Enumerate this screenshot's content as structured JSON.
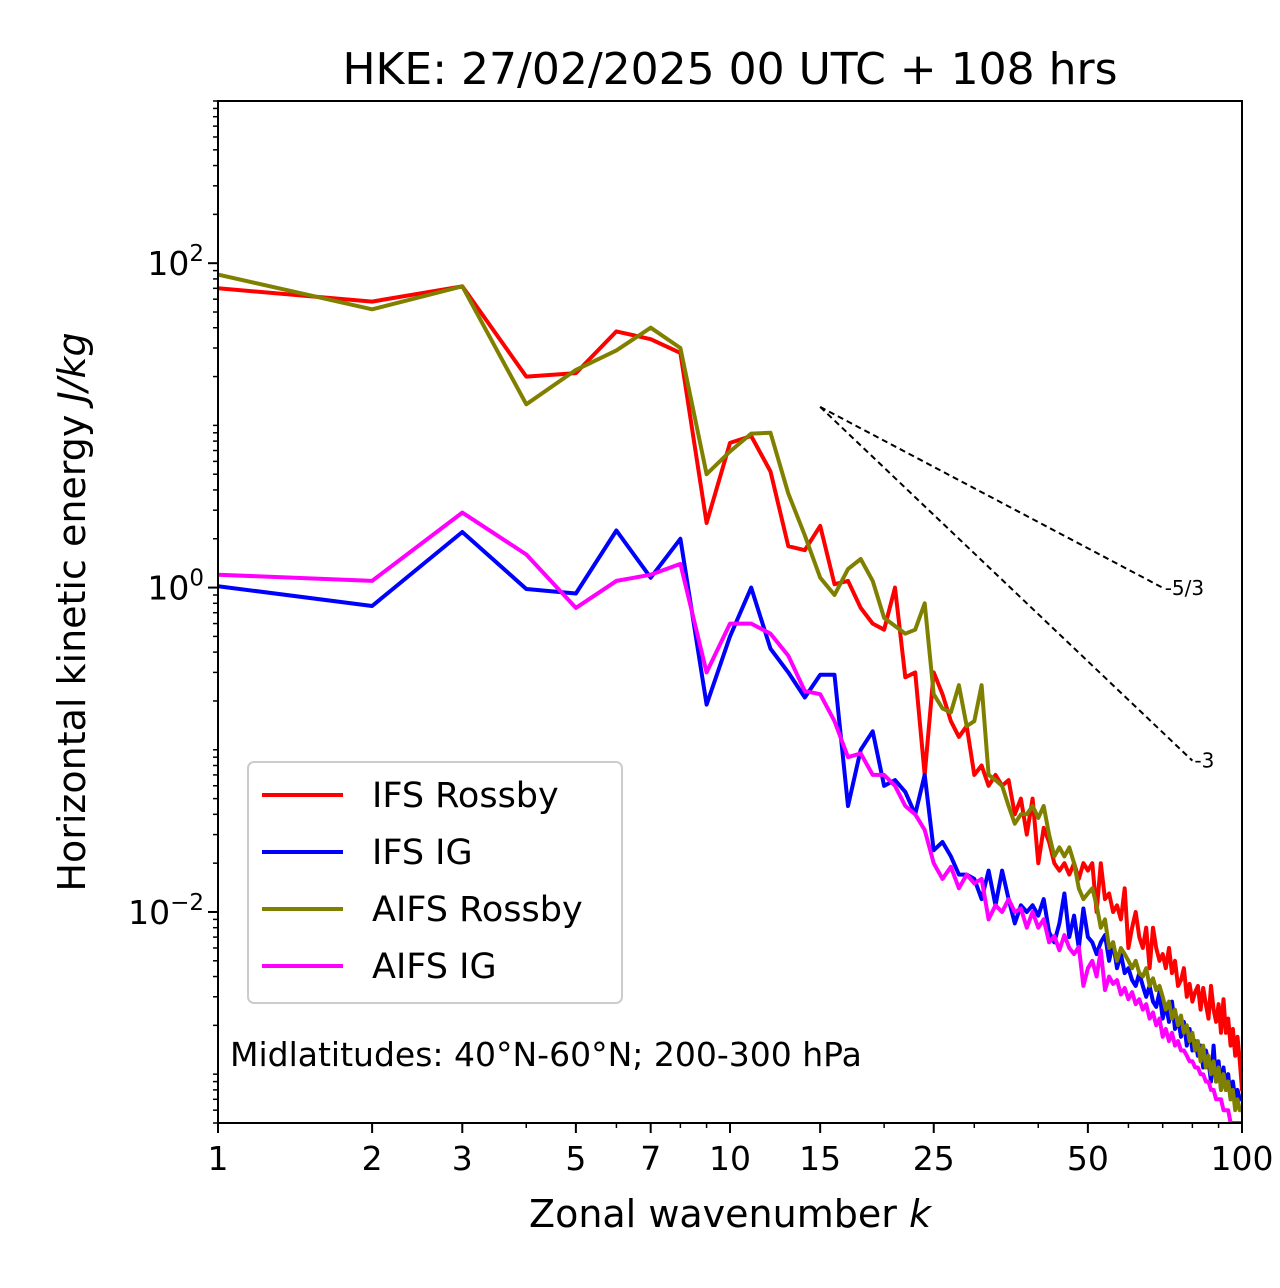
{
  "chart_data": {
    "type": "line",
    "title": "HKE: 27/02/2025 00 UTC + 108 hrs",
    "xlabel": "Zonal wavenumber ",
    "xlabel_italic": "k",
    "ylabel": "Horizontal kinetic energy ",
    "ylabel_italic": "J/kg",
    "x_scale": "log",
    "y_scale": "log",
    "xlim": [
      1,
      100
    ],
    "ylim": [
      0.0005,
      1000
    ],
    "x_ticks": [
      1,
      2,
      3,
      5,
      7,
      10,
      15,
      25,
      50,
      100
    ],
    "x_tick_labels": [
      "1",
      "2",
      "3",
      "5",
      "7",
      "10",
      "15",
      "25",
      "50",
      "100"
    ],
    "y_ticks": [
      {
        "value": 100,
        "base": "10",
        "exp": "2"
      },
      {
        "value": 1,
        "base": "10",
        "exp": "0"
      },
      {
        "value": 0.01,
        "base": "10",
        "exp": "−2"
      }
    ],
    "grid": false,
    "legend_position": "lower-left",
    "annotation": "Midlatitudes: 40°N-60°N; 200-300 hPa",
    "reference_slopes": [
      {
        "label": "-5/3",
        "slope": -1.6667,
        "x_start": 15,
        "x_end": 70,
        "y_start": 13
      },
      {
        "label": "-3",
        "slope": -3,
        "x_start": 15,
        "x_end": 80,
        "y_start": 13
      }
    ],
    "series": [
      {
        "name": "IFS Rossby",
        "color": "#ff0000",
        "x": [
          1,
          2,
          3,
          4,
          5,
          6,
          7,
          8,
          9,
          10,
          11,
          12,
          13,
          14,
          15,
          16,
          17,
          18,
          19,
          20,
          21,
          22,
          23,
          24,
          25,
          26,
          27,
          28,
          29,
          30,
          31,
          32,
          33,
          34,
          35,
          36,
          37,
          38,
          39,
          40,
          41,
          42,
          43,
          44,
          45,
          46,
          47,
          48,
          49,
          50,
          51,
          52,
          53,
          54,
          55,
          56,
          57,
          58,
          59,
          60,
          61,
          62,
          63,
          64,
          65,
          66,
          67,
          68,
          69,
          70,
          71,
          72,
          73,
          74,
          75,
          76,
          77,
          78,
          79,
          80,
          81,
          82,
          83,
          84,
          85,
          86,
          87,
          88,
          89,
          90,
          91,
          92,
          93,
          94,
          95,
          96,
          97,
          98,
          99,
          100
        ],
        "y": [
          70,
          58,
          72,
          20,
          21,
          38,
          34,
          28,
          2.5,
          7.8,
          8.6,
          5.2,
          1.8,
          1.7,
          2.4,
          1.05,
          1.1,
          0.75,
          0.6,
          0.55,
          1.0,
          0.28,
          0.3,
          0.07,
          0.3,
          0.22,
          0.15,
          0.12,
          0.14,
          0.07,
          0.08,
          0.06,
          0.07,
          0.06,
          0.065,
          0.04,
          0.05,
          0.03,
          0.05,
          0.02,
          0.033,
          0.027,
          0.02,
          0.018,
          0.02,
          0.017,
          0.02,
          0.016,
          0.02,
          0.018,
          0.02,
          0.01,
          0.02,
          0.012,
          0.013,
          0.01,
          0.011,
          0.009,
          0.014,
          0.006,
          0.008,
          0.01,
          0.007,
          0.006,
          0.008,
          0.0045,
          0.008,
          0.006,
          0.005,
          0.0055,
          0.0045,
          0.006,
          0.0042,
          0.005,
          0.0035,
          0.0038,
          0.0045,
          0.003,
          0.0036,
          0.0028,
          0.0032,
          0.0035,
          0.0025,
          0.0034,
          0.0027,
          0.0022,
          0.0035,
          0.0025,
          0.0021,
          0.0027,
          0.0018,
          0.0029,
          0.0018,
          0.0022,
          0.0015,
          0.0019,
          0.0013,
          0.0017,
          0.0012,
          0.0008
        ]
      },
      {
        "name": "IFS IG",
        "color": "#0000ff",
        "x": [
          1,
          2,
          3,
          4,
          5,
          6,
          7,
          8,
          9,
          10,
          11,
          12,
          13,
          14,
          15,
          16,
          17,
          18,
          19,
          20,
          21,
          22,
          23,
          24,
          25,
          26,
          27,
          28,
          29,
          30,
          31,
          32,
          33,
          34,
          35,
          36,
          37,
          38,
          39,
          40,
          41,
          42,
          43,
          44,
          45,
          46,
          47,
          48,
          49,
          50,
          51,
          52,
          53,
          54,
          55,
          56,
          57,
          58,
          59,
          60,
          61,
          62,
          63,
          64,
          65,
          66,
          67,
          68,
          69,
          70,
          71,
          72,
          73,
          74,
          75,
          76,
          77,
          78,
          79,
          80,
          81,
          82,
          83,
          84,
          85,
          86,
          87,
          88,
          89,
          90,
          91,
          92,
          93,
          94,
          95,
          96,
          97,
          98,
          99,
          100
        ],
        "y": [
          1.02,
          0.77,
          2.2,
          0.98,
          0.92,
          2.25,
          1.15,
          2.0,
          0.19,
          0.5,
          1.0,
          0.42,
          0.3,
          0.21,
          0.29,
          0.29,
          0.045,
          0.1,
          0.13,
          0.06,
          0.065,
          0.055,
          0.04,
          0.07,
          0.024,
          0.027,
          0.022,
          0.017,
          0.017,
          0.016,
          0.012,
          0.018,
          0.011,
          0.018,
          0.012,
          0.0085,
          0.011,
          0.01,
          0.011,
          0.0095,
          0.012,
          0.0075,
          0.0065,
          0.0085,
          0.013,
          0.007,
          0.0095,
          0.006,
          0.0105,
          0.007,
          0.0065,
          0.0055,
          0.0065,
          0.0072,
          0.005,
          0.0065,
          0.0045,
          0.0055,
          0.0042,
          0.0045,
          0.0038,
          0.0035,
          0.0042,
          0.0035,
          0.003,
          0.0035,
          0.0028,
          0.0026,
          0.0032,
          0.0022,
          0.0027,
          0.0021,
          0.0028,
          0.0019,
          0.0022,
          0.0017,
          0.0021,
          0.0015,
          0.0019,
          0.0014,
          0.0016,
          0.0013,
          0.0015,
          0.0011,
          0.0014,
          0.0012,
          0.0009,
          0.0015,
          0.0009,
          0.0012,
          0.0008,
          0.0011,
          0.0008,
          0.001,
          0.0007,
          0.0009,
          0.0007,
          0.0008,
          0.0007,
          0.0007
        ]
      },
      {
        "name": "AIFS Rossby",
        "color": "#808000",
        "x": [
          1,
          2,
          3,
          4,
          5,
          6,
          7,
          8,
          9,
          10,
          11,
          12,
          13,
          14,
          15,
          16,
          17,
          18,
          19,
          20,
          21,
          22,
          23,
          24,
          25,
          26,
          27,
          28,
          29,
          30,
          31,
          32,
          33,
          34,
          35,
          36,
          37,
          38,
          39,
          40,
          41,
          42,
          43,
          44,
          45,
          46,
          47,
          48,
          49,
          50,
          51,
          52,
          53,
          54,
          55,
          56,
          57,
          58,
          59,
          60,
          61,
          62,
          63,
          64,
          65,
          66,
          67,
          68,
          69,
          70,
          71,
          72,
          73,
          74,
          75,
          76,
          77,
          78,
          79,
          80,
          81,
          82,
          83,
          84,
          85,
          86,
          87,
          88,
          89,
          90,
          91,
          92,
          93,
          94,
          95,
          96,
          97,
          98,
          99,
          100
        ],
        "y": [
          85,
          52,
          72,
          13.5,
          22,
          29,
          40,
          30,
          5.0,
          6.9,
          8.9,
          9.0,
          3.8,
          2.1,
          1.15,
          0.9,
          1.3,
          1.5,
          1.1,
          0.65,
          0.58,
          0.52,
          0.55,
          0.8,
          0.22,
          0.18,
          0.17,
          0.25,
          0.14,
          0.15,
          0.25,
          0.07,
          0.065,
          0.06,
          0.045,
          0.035,
          0.04,
          0.04,
          0.045,
          0.038,
          0.045,
          0.03,
          0.022,
          0.025,
          0.022,
          0.025,
          0.02,
          0.014,
          0.012,
          0.013,
          0.014,
          0.011,
          0.008,
          0.009,
          0.006,
          0.0065,
          0.005,
          0.006,
          0.0055,
          0.005,
          0.0045,
          0.005,
          0.0042,
          0.004,
          0.0045,
          0.0035,
          0.0039,
          0.0033,
          0.0035,
          0.003,
          0.0025,
          0.0028,
          0.0022,
          0.0025,
          0.002,
          0.0023,
          0.0018,
          0.002,
          0.0016,
          0.0018,
          0.0014,
          0.0016,
          0.0012,
          0.0015,
          0.0011,
          0.0013,
          0.001,
          0.0012,
          0.0009,
          0.0011,
          0.0008,
          0.001,
          0.0008,
          0.0009,
          0.0007,
          0.0008,
          0.0006,
          0.0007,
          0.0006,
          0.0006
        ]
      },
      {
        "name": "AIFS IG",
        "color": "#ff00ff",
        "x": [
          1,
          2,
          3,
          4,
          5,
          6,
          7,
          8,
          9,
          10,
          11,
          12,
          13,
          14,
          15,
          16,
          17,
          18,
          19,
          20,
          21,
          22,
          23,
          24,
          25,
          26,
          27,
          28,
          29,
          30,
          31,
          32,
          33,
          34,
          35,
          36,
          37,
          38,
          39,
          40,
          41,
          42,
          43,
          44,
          45,
          46,
          47,
          48,
          49,
          50,
          51,
          52,
          53,
          54,
          55,
          56,
          57,
          58,
          59,
          60,
          61,
          62,
          63,
          64,
          65,
          66,
          67,
          68,
          69,
          70,
          71,
          72,
          73,
          74,
          75,
          76,
          77,
          78,
          79,
          80,
          81,
          82,
          83,
          84,
          85,
          86,
          87,
          88,
          89,
          90,
          91,
          92,
          93,
          94,
          95,
          96,
          97,
          98,
          99,
          100
        ],
        "y": [
          1.2,
          1.1,
          2.9,
          1.6,
          0.75,
          1.1,
          1.2,
          1.4,
          0.3,
          0.6,
          0.6,
          0.52,
          0.38,
          0.23,
          0.22,
          0.15,
          0.09,
          0.095,
          0.07,
          0.07,
          0.06,
          0.045,
          0.04,
          0.032,
          0.02,
          0.016,
          0.019,
          0.014,
          0.017,
          0.015,
          0.016,
          0.009,
          0.011,
          0.01,
          0.012,
          0.01,
          0.0105,
          0.008,
          0.01,
          0.008,
          0.009,
          0.0065,
          0.0071,
          0.0058,
          0.0072,
          0.006,
          0.0055,
          0.0061,
          0.0035,
          0.0045,
          0.005,
          0.004,
          0.0058,
          0.0033,
          0.004,
          0.0036,
          0.0038,
          0.0031,
          0.0034,
          0.0029,
          0.0032,
          0.0027,
          0.0029,
          0.0025,
          0.0027,
          0.0022,
          0.0024,
          0.002,
          0.0022,
          0.0017,
          0.0019,
          0.0016,
          0.0018,
          0.0015,
          0.0016,
          0.0014,
          0.0014,
          0.0013,
          0.0012,
          0.0012,
          0.0011,
          0.0011,
          0.001,
          0.001,
          0.0009,
          0.0009,
          0.0008,
          0.0008,
          0.0007,
          0.0007,
          0.0007,
          0.0006,
          0.0006,
          0.0006,
          0.0005,
          0.0005,
          0.0005,
          0.0005,
          0.0005,
          0.0005
        ]
      }
    ]
  }
}
